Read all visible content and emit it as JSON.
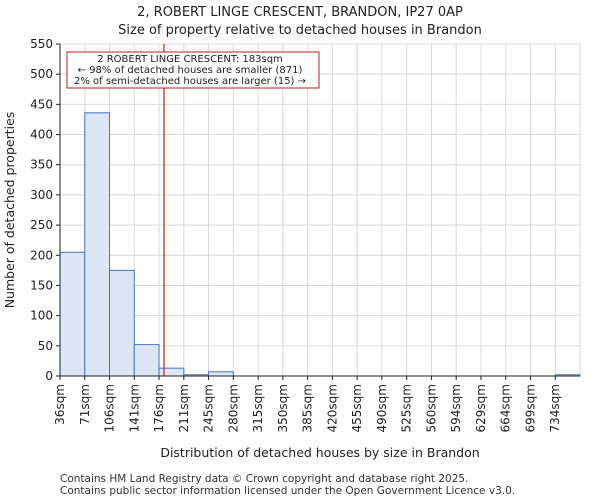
{
  "chart_data": {
    "type": "bar",
    "title": "2, ROBERT LINGE CRESCENT, BRANDON, IP27 0AP",
    "subtitle": "Size of property relative to detached houses in Brandon",
    "xlabel": "Distribution of detached houses by size in Brandon",
    "ylabel": "Number of detached properties",
    "categories": [
      "36sqm",
      "71sqm",
      "106sqm",
      "141sqm",
      "176sqm",
      "211sqm",
      "245sqm",
      "280sqm",
      "315sqm",
      "350sqm",
      "385sqm",
      "420sqm",
      "455sqm",
      "490sqm",
      "525sqm",
      "560sqm",
      "594sqm",
      "629sqm",
      "664sqm",
      "699sqm",
      "734sqm"
    ],
    "values": [
      205,
      436,
      175,
      52,
      13,
      2,
      7,
      0,
      0,
      0,
      0,
      0,
      0,
      0,
      0,
      0,
      0,
      0,
      0,
      0,
      2
    ],
    "ylim": [
      0,
      550
    ],
    "yticks": [
      0,
      50,
      100,
      150,
      200,
      250,
      300,
      350,
      400,
      450,
      500,
      550
    ],
    "grid": true,
    "bar_color": "#dce6f5",
    "bar_edge_color": "#4a72c4",
    "marker": {
      "value_sqm": 183,
      "color": "#b22222",
      "lines": [
        "2 ROBERT LINGE CRESCENT: 183sqm",
        "← 98% of detached houses are smaller (871)",
        "2% of semi-detached houses are larger (15) →"
      ]
    }
  },
  "footer": {
    "line1": "Contains HM Land Registry data © Crown copyright and database right 2025.",
    "line2": "Contains public sector information licensed under the Open Government Licence v3.0."
  }
}
